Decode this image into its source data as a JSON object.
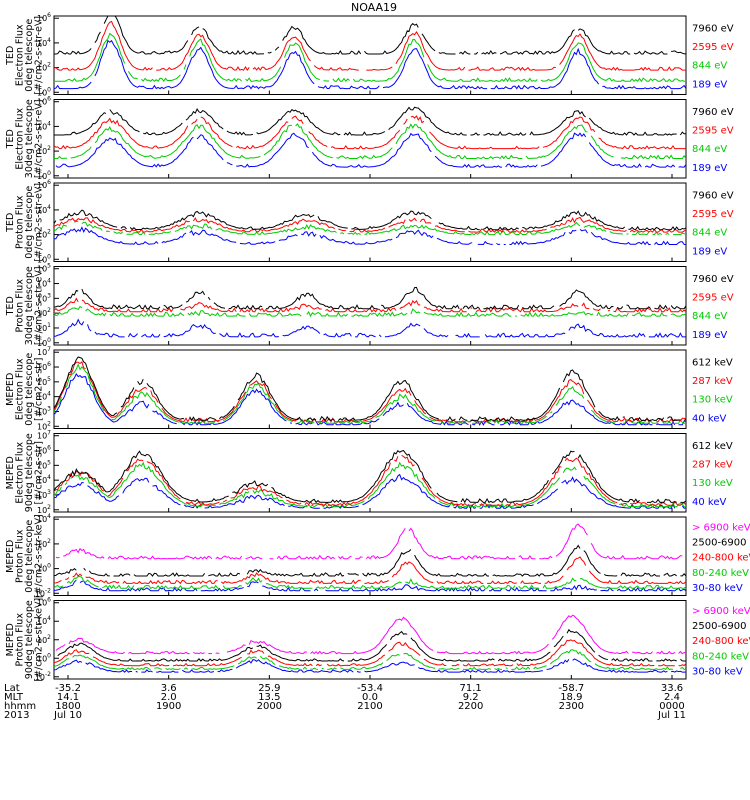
{
  "title": "NOAA19",
  "chart_data": {
    "type": "line",
    "panels": [
      {
        "ylabel": [
          "TED",
          "Electron Flux",
          "0deg telescope",
          "[#/cm2-s-str-eV]"
        ],
        "ticks": [
          "10^6",
          "10^4",
          "10^2",
          "10^0"
        ],
        "legend": [
          {
            "name": "7960 eV",
            "color": "#000000"
          },
          {
            "name": "2595 eV",
            "color": "#ff0000"
          },
          {
            "name": "844 eV",
            "color": "#00cc00"
          },
          {
            "name": "189 eV",
            "color": "#0000ff"
          }
        ],
        "peaks": [
          [
            0.09,
            [
              6.4,
              5.6,
              4.7,
              4.2
            ]
          ],
          [
            0.23,
            [
              5.2,
              4.7,
              4.2,
              3.5
            ]
          ],
          [
            0.38,
            [
              5.2,
              4.6,
              4.0,
              3.3
            ]
          ],
          [
            0.57,
            [
              5.4,
              4.8,
              4.2,
              3.5
            ]
          ],
          [
            0.83,
            [
              5.2,
              4.6,
              4.0,
              3.3
            ]
          ]
        ],
        "bg": [
          3.1,
          1.8,
          0.9,
          0.3
        ]
      },
      {
        "ylabel": [
          "TED",
          "Electron Flux",
          "30deg telescope",
          "[#/cm2-s-str-eV]"
        ],
        "ticks": [
          "10^6",
          "10^4",
          "10^2",
          "10^0"
        ],
        "legend": [
          {
            "name": "7960 eV",
            "color": "#000000"
          },
          {
            "name": "2595 eV",
            "color": "#ff0000"
          },
          {
            "name": "844 eV",
            "color": "#00cc00"
          },
          {
            "name": "189 eV",
            "color": "#0000ff"
          }
        ],
        "peaks": [
          [
            0.09,
            [
              5.2,
              4.5,
              3.8,
              3.0
            ]
          ],
          [
            0.23,
            [
              5.3,
              4.6,
              4.0,
              3.2
            ]
          ],
          [
            0.38,
            [
              5.4,
              4.7,
              4.1,
              3.3
            ]
          ],
          [
            0.57,
            [
              5.5,
              4.8,
              4.1,
              3.3
            ]
          ],
          [
            0.83,
            [
              5.1,
              4.6,
              4.0,
              3.4
            ]
          ]
        ],
        "bg": [
          3.3,
          2.2,
          1.4,
          0.7
        ]
      },
      {
        "ylabel": [
          "TED",
          "Proton Flux",
          "0deg telescope",
          "[#/cm2-s-str-eV]"
        ],
        "ticks": [
          "10^6",
          "10^4",
          "10^2",
          "10^0"
        ],
        "legend": [
          {
            "name": "7960 eV",
            "color": "#000000"
          },
          {
            "name": "2595 eV",
            "color": "#ff0000"
          },
          {
            "name": "844 eV",
            "color": "#00cc00"
          },
          {
            "name": "189 eV",
            "color": "#0000ff"
          }
        ],
        "peaks": [
          [
            0.04,
            [
              3.8,
              3.3,
              2.9,
              2.4
            ]
          ],
          [
            0.23,
            [
              3.7,
              3.2,
              2.7,
              2.2
            ]
          ],
          [
            0.4,
            [
              3.6,
              3.1,
              2.6,
              2.1
            ]
          ],
          [
            0.57,
            [
              3.8,
              3.2,
              2.7,
              2.2
            ]
          ],
          [
            0.83,
            [
              3.7,
              3.2,
              2.8,
              2.3
            ]
          ]
        ],
        "bg": [
          2.4,
          2.2,
          2.0,
          1.2
        ]
      },
      {
        "ylabel": [
          "TED",
          "Proton Flux",
          "30deg telescope",
          "[#/cm2-s-str-eV]"
        ],
        "ticks": [
          "10^5",
          "10^4",
          "10^3",
          "10^2",
          "10^1",
          "10^0"
        ],
        "legend": [
          {
            "name": "7960 eV",
            "color": "#000000"
          },
          {
            "name": "2595 eV",
            "color": "#ff0000"
          },
          {
            "name": "844 eV",
            "color": "#00cc00"
          },
          {
            "name": "189 eV",
            "color": "#0000ff"
          }
        ],
        "peaks": [
          [
            0.04,
            [
              3.5,
              2.9,
              2.4,
              1.4
            ]
          ],
          [
            0.23,
            [
              3.4,
              2.6,
              2.0,
              1.2
            ]
          ],
          [
            0.4,
            [
              3.3,
              2.5,
              1.9,
              1.1
            ]
          ],
          [
            0.57,
            [
              3.6,
              2.7,
              2.1,
              1.2
            ]
          ],
          [
            0.83,
            [
              3.4,
              2.6,
              2.0,
              1.1
            ]
          ]
        ],
        "bg": [
          2.3,
          2.1,
          1.8,
          0.4
        ]
      },
      {
        "ylabel": [
          "MEPED",
          "Electron Flux",
          "0deg telescope",
          "[#/cm2-s-str]"
        ],
        "ticks": [
          "10^7",
          "10^6",
          "10^5",
          "10^4",
          "10^3",
          "10^2"
        ],
        "legend": [
          {
            "name": "612 keV",
            "color": "#000000"
          },
          {
            "name": "287 keV",
            "color": "#ff0000"
          },
          {
            "name": "130 keV",
            "color": "#00cc00"
          },
          {
            "name": "40 keV",
            "color": "#0000ff"
          }
        ],
        "peaks": [
          [
            0.04,
            [
              6.5,
              6.3,
              6.0,
              5.5
            ]
          ],
          [
            0.14,
            [
              5.0,
              4.6,
              4.2,
              3.5
            ]
          ],
          [
            0.32,
            [
              5.4,
              5.1,
              4.8,
              4.4
            ]
          ],
          [
            0.55,
            [
              5.0,
              4.5,
              4.0,
              3.5
            ]
          ],
          [
            0.82,
            [
              5.7,
              5.0,
              4.5,
              3.7
            ]
          ]
        ],
        "bg": [
          2.4,
          2.3,
          2.2,
          2.1
        ]
      },
      {
        "ylabel": [
          "MEPED",
          "Electron Flux",
          "90deg telescope",
          "[#/cm2-s-str]"
        ],
        "ticks": [
          "10^7",
          "10^6",
          "10^5",
          "10^4",
          "10^3",
          "10^2"
        ],
        "legend": [
          {
            "name": "612 keV",
            "color": "#000000"
          },
          {
            "name": "287 keV",
            "color": "#ff0000"
          },
          {
            "name": "130 keV",
            "color": "#00cc00"
          },
          {
            "name": "40 keV",
            "color": "#0000ff"
          }
        ],
        "peaks": [
          [
            0.04,
            [
              4.6,
              4.5,
              4.2,
              3.8
            ]
          ],
          [
            0.14,
            [
              5.8,
              5.5,
              5.0,
              4.0
            ]
          ],
          [
            0.32,
            [
              3.8,
              3.5,
              3.2,
              2.8
            ]
          ],
          [
            0.55,
            [
              6.0,
              5.6,
              5.0,
              4.2
            ]
          ],
          [
            0.82,
            [
              5.8,
              5.4,
              4.8,
              4.0
            ]
          ]
        ],
        "bg": [
          2.5,
          2.3,
          2.2,
          2.1
        ]
      },
      {
        "ylabel": [
          "MEPED",
          "Proton Flux",
          "0deg telescope",
          "[#/cm2-s-str-keV]"
        ],
        "ticks": [
          "10^4",
          "10^2",
          "10^0",
          "10^-2"
        ],
        "legend": [
          {
            "name": "> 6900 keV",
            "color": "#ff00ff"
          },
          {
            "name": "2500-6900",
            "color": "#000000"
          },
          {
            "name": "240-800 keV",
            "color": "#ff0000"
          },
          {
            "name": "80-240 keV",
            "color": "#00cc00"
          },
          {
            "name": "30-80 keV",
            "color": "#0000ff"
          }
        ],
        "peaks": [
          [
            0.04,
            [
              1.5,
              0.0,
              -0.4,
              -0.8,
              -1.1
            ]
          ],
          [
            0.32,
            [
              0.5,
              -0.2,
              -0.5,
              -0.9,
              -1.2
            ]
          ],
          [
            0.56,
            [
              3.2,
              1.5,
              0.5,
              -1.0,
              -1.5
            ]
          ],
          [
            0.83,
            [
              3.6,
              1.8,
              0.8,
              -0.8,
              -1.5
            ]
          ]
        ],
        "bg": [
          0.8,
          -0.6,
          -1.2,
          -1.6,
          -1.8
        ]
      },
      {
        "ylabel": [
          "MEPED",
          "Proton Flux",
          "90deg telescope",
          "[#/cm2-s-str-keV]"
        ],
        "ticks": [
          "10^6",
          "10^4",
          "10^2",
          "10^0",
          "10^-2"
        ],
        "legend": [
          {
            "name": "> 6900 keV",
            "color": "#ff00ff"
          },
          {
            "name": "2500-6900",
            "color": "#000000"
          },
          {
            "name": "240-800 keV",
            "color": "#ff0000"
          },
          {
            "name": "80-240 keV",
            "color": "#00cc00"
          },
          {
            "name": "30-80 keV",
            "color": "#0000ff"
          }
        ],
        "peaks": [
          [
            0.04,
            [
              2.0,
              1.5,
              0.8,
              0.3,
              -0.3
            ]
          ],
          [
            0.32,
            [
              1.8,
              1.3,
              0.8,
              0.2,
              -0.3
            ]
          ],
          [
            0.55,
            [
              4.3,
              2.8,
              1.6,
              0.5,
              -0.5
            ]
          ],
          [
            0.82,
            [
              4.6,
              3.0,
              2.0,
              0.8,
              -0.2
            ]
          ]
        ],
        "bg": [
          0.5,
          -0.3,
          -0.8,
          -1.2,
          -1.5
        ]
      }
    ]
  },
  "axis": {
    "row_labels": [
      "Lat",
      "MLT",
      "hhmm",
      "2013"
    ],
    "cols": [
      {
        "lat": "-35.2",
        "mlt": "14.1",
        "hhmm": "1800",
        "date": "Jul 10"
      },
      {
        "lat": "3.6",
        "mlt": "2.0",
        "hhmm": "1900",
        "date": ""
      },
      {
        "lat": "25.9",
        "mlt": "13.5",
        "hhmm": "2000",
        "date": ""
      },
      {
        "lat": "-53.4",
        "mlt": "0.0",
        "hhmm": "2100",
        "date": ""
      },
      {
        "lat": "71.1",
        "mlt": "9.2",
        "hhmm": "2200",
        "date": ""
      },
      {
        "lat": "-58.7",
        "mlt": "18.9",
        "hhmm": "2300",
        "date": ""
      },
      {
        "lat": "33.6",
        "mlt": "2.4",
        "hhmm": "0000",
        "date": "Jul 11"
      }
    ]
  }
}
